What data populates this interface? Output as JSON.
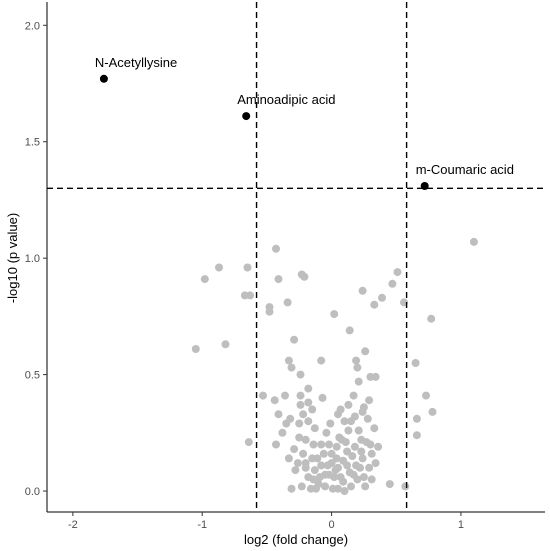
{
  "chart_data": {
    "type": "scatter",
    "title": "",
    "xlabel": "log2 (fold change)",
    "ylabel": "-log10 (p value)",
    "xlim": [
      -2.2,
      1.65
    ],
    "ylim": [
      -0.09,
      2.1
    ],
    "xticks": [
      -2,
      -1,
      0,
      1
    ],
    "yticks": [
      0.0,
      0.5,
      1.0,
      1.5,
      2.0
    ],
    "xtick_labels": [
      "-2",
      "-1",
      "0",
      "1"
    ],
    "ytick_labels": [
      "0.0",
      "0.5",
      "1.0",
      "1.5",
      "2.0"
    ],
    "grid": false,
    "legend": "none",
    "thresholds": {
      "x": [
        -0.58,
        0.58
      ],
      "y": 1.3
    },
    "colors": {
      "significant": "#000000",
      "nonsignificant": "#bebebe",
      "threshold_line": "#000000"
    },
    "significant_points": [
      {
        "label": "N-Acetyllysine",
        "x": -1.76,
        "y": 1.77
      },
      {
        "label": "Aminoadipic acid",
        "x": -0.66,
        "y": 1.61
      },
      {
        "label": "m-Coumaric acid",
        "x": 0.72,
        "y": 1.31
      }
    ],
    "points": [
      [
        1.1,
        1.07
      ],
      [
        -0.65,
        0.96
      ],
      [
        -0.67,
        0.84
      ],
      [
        -0.63,
        0.84
      ],
      [
        -0.87,
        0.96
      ],
      [
        -0.98,
        0.91
      ],
      [
        -1.05,
        0.61
      ],
      [
        -0.82,
        0.63
      ],
      [
        -0.64,
        0.21
      ],
      [
        -0.43,
        1.04
      ],
      [
        -0.41,
        0.91
      ],
      [
        -0.34,
        0.81
      ],
      [
        -0.23,
        0.93
      ],
      [
        -0.21,
        0.92
      ],
      [
        -0.48,
        0.79
      ],
      [
        -0.48,
        0.77
      ],
      [
        -0.53,
        0.41
      ],
      [
        -0.36,
        0.41
      ],
      [
        -0.29,
        0.65
      ],
      [
        -0.33,
        0.56
      ],
      [
        -0.31,
        0.53
      ],
      [
        -0.44,
        0.39
      ],
      [
        -0.24,
        0.37
      ],
      [
        -0.41,
        0.33
      ],
      [
        -0.35,
        0.29
      ],
      [
        -0.32,
        0.31
      ],
      [
        -0.38,
        0.25
      ],
      [
        -0.29,
        0.18
      ],
      [
        -0.43,
        0.2
      ],
      [
        -0.33,
        0.14
      ],
      [
        -0.28,
        0.09
      ],
      [
        -0.2,
        0.12
      ],
      [
        -0.23,
        0.02
      ],
      [
        -0.31,
        0.01
      ],
      [
        0.02,
        0.76
      ],
      [
        0.14,
        0.69
      ],
      [
        0.19,
        0.56
      ],
      [
        0.2,
        0.53
      ],
      [
        0.26,
        0.6
      ],
      [
        0.3,
        0.49
      ],
      [
        0.34,
        0.49
      ],
      [
        0.24,
        0.86
      ],
      [
        0.33,
        0.8
      ],
      [
        0.39,
        0.83
      ],
      [
        0.47,
        0.89
      ],
      [
        0.51,
        0.94
      ],
      [
        0.56,
        0.81
      ],
      [
        0.77,
        0.74
      ],
      [
        0.65,
        0.55
      ],
      [
        0.73,
        0.41
      ],
      [
        0.78,
        0.34
      ],
      [
        0.66,
        0.31
      ],
      [
        0.66,
        0.24
      ],
      [
        0.57,
        0.02
      ],
      [
        -0.08,
        0.56
      ],
      [
        -0.24,
        0.5
      ],
      [
        -0.18,
        0.44
      ],
      [
        -0.24,
        0.41
      ],
      [
        -0.07,
        0.4
      ],
      [
        -0.18,
        0.38
      ],
      [
        -0.15,
        0.35
      ],
      [
        -0.22,
        0.33
      ],
      [
        -0.25,
        0.29
      ],
      [
        -0.18,
        0.3
      ],
      [
        -0.13,
        0.27
      ],
      [
        -0.25,
        0.23
      ],
      [
        -0.2,
        0.22
      ],
      [
        -0.08,
        0.2
      ],
      [
        -0.14,
        0.2
      ],
      [
        -0.22,
        0.16
      ],
      [
        -0.15,
        0.14
      ],
      [
        -0.08,
        0.11
      ],
      [
        -0.13,
        0.09
      ],
      [
        -0.18,
        0.06
      ],
      [
        -0.14,
        0.05
      ],
      [
        -0.1,
        0.03
      ],
      [
        -0.05,
        0.02
      ],
      [
        -0.12,
        0.01
      ],
      [
        -0.03,
        0.11
      ],
      [
        -0.02,
        0.07
      ],
      [
        0.02,
        0.06
      ],
      [
        0.05,
        0.1
      ],
      [
        0.09,
        0.13
      ],
      [
        0.12,
        0.17
      ],
      [
        0.08,
        0.22
      ],
      [
        0.04,
        0.19
      ],
      [
        0.0,
        0.16
      ],
      [
        0.13,
        0.26
      ],
      [
        0.07,
        0.35
      ],
      [
        0.17,
        0.41
      ],
      [
        0.21,
        0.47
      ],
      [
        0.15,
        0.3
      ],
      [
        0.21,
        0.26
      ],
      [
        0.23,
        0.22
      ],
      [
        0.27,
        0.21
      ],
      [
        0.3,
        0.2
      ],
      [
        0.31,
        0.16
      ],
      [
        0.36,
        0.19
      ],
      [
        0.24,
        0.14
      ],
      [
        0.19,
        0.11
      ],
      [
        0.14,
        0.08
      ],
      [
        0.09,
        0.04
      ],
      [
        0.05,
        0.01
      ],
      [
        0.1,
        0.0
      ],
      [
        0.15,
        0.02
      ],
      [
        0.2,
        0.05
      ],
      [
        0.25,
        0.06
      ],
      [
        0.29,
        0.1
      ],
      [
        0.34,
        0.12
      ],
      [
        0.18,
        0.32
      ],
      [
        0.24,
        0.34
      ],
      [
        0.25,
        0.36
      ],
      [
        0.29,
        0.39
      ],
      [
        0.1,
        0.3
      ],
      [
        -0.04,
        0.25
      ],
      [
        -0.01,
        0.29
      ],
      [
        0.05,
        0.33
      ],
      [
        0.13,
        0.37
      ],
      [
        0.07,
        0.06
      ],
      [
        0.01,
        0.01
      ],
      [
        -0.05,
        0.07
      ],
      [
        0.0,
        0.12
      ],
      [
        0.04,
        0.14
      ],
      [
        -0.02,
        0.2
      ],
      [
        0.11,
        0.21
      ],
      [
        0.16,
        0.15
      ],
      [
        0.22,
        0.1
      ],
      [
        0.26,
        0.02
      ],
      [
        0.31,
        0.05
      ],
      [
        0.45,
        0.03
      ],
      [
        0.33,
        0.27
      ],
      [
        0.28,
        0.31
      ],
      [
        0.23,
        0.17
      ],
      [
        0.18,
        0.19
      ],
      [
        -0.11,
        0.14
      ],
      [
        -0.06,
        0.16
      ],
      [
        -0.2,
        0.1
      ],
      [
        -0.26,
        0.12
      ],
      [
        -0.16,
        0.01
      ],
      [
        0.06,
        0.23
      ],
      [
        0.12,
        0.11
      ],
      [
        -0.09,
        0.06
      ],
      [
        0.03,
        0.09
      ],
      [
        0.17,
        0.07
      ]
    ]
  }
}
